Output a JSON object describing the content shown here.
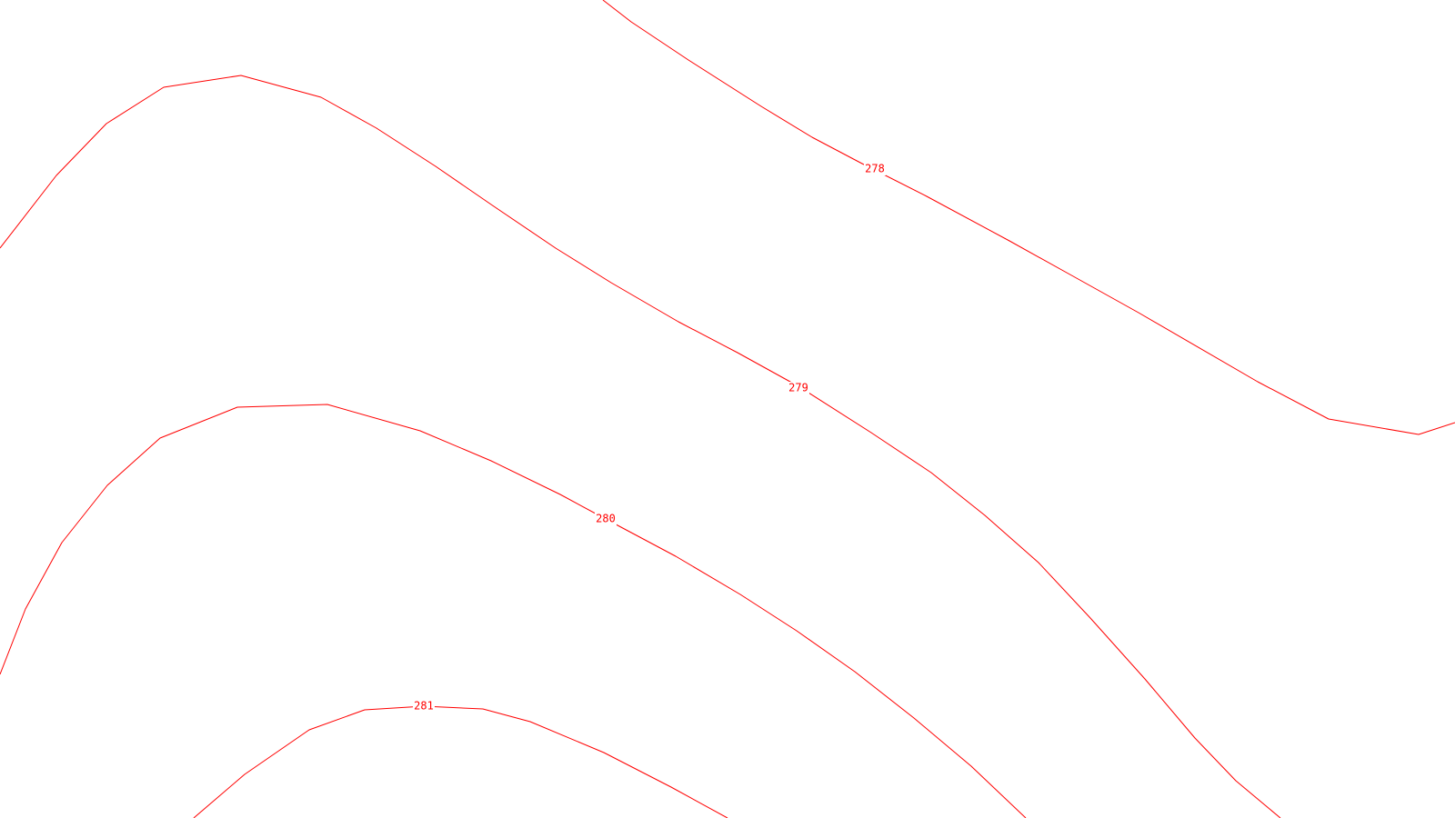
{
  "map": {
    "line_color": "#ff0000",
    "background_color": "#ffffff",
    "contours": [
      {
        "id": "c278",
        "label": "278"
      },
      {
        "id": "c279",
        "label": "279"
      },
      {
        "id": "c280",
        "label": "280"
      },
      {
        "id": "c281",
        "label": "281"
      }
    ]
  }
}
